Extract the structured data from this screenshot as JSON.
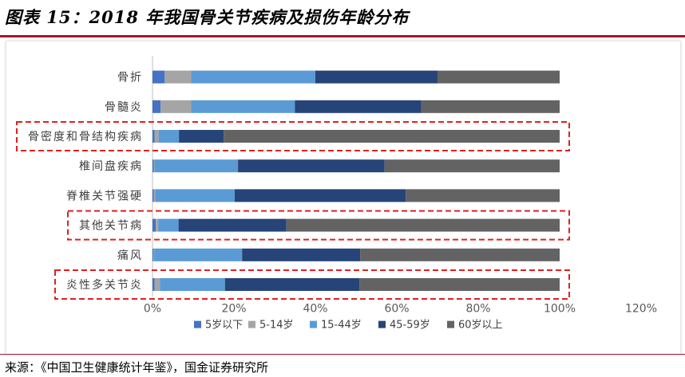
{
  "figure": {
    "title": "图表 15：2018 年我国骨关节疾病及损伤年龄分布",
    "source": "来源：《中国卫生健康统计年鉴》，国金证券研究所"
  },
  "chart_data": {
    "type": "bar",
    "orientation": "horizontal",
    "stacked": true,
    "title": "2018 年我国骨关节疾病及损伤年龄分布",
    "categories": [
      "骨折",
      "骨髓炎",
      "骨密度和骨结构疾病",
      "椎间盘疾病",
      "脊椎关节强硬",
      "其他关节病",
      "痛风",
      "炎性多关节炎"
    ],
    "series": [
      {
        "name": "5岁以下",
        "color": "#4472c4",
        "values": [
          3,
          2,
          0.5,
          0.3,
          0.3,
          0.8,
          0.2,
          0.5
        ]
      },
      {
        "name": "5-14岁",
        "color": "#a5a5a5",
        "values": [
          6.5,
          7.5,
          1,
          0.2,
          0.4,
          0.6,
          0.2,
          1.3
        ]
      },
      {
        "name": "15-44岁",
        "color": "#5b9bd5",
        "values": [
          30.5,
          25.5,
          5,
          20.5,
          19.5,
          5,
          21.6,
          16
        ]
      },
      {
        "name": "45-59岁",
        "color": "#264478",
        "values": [
          30,
          31,
          11,
          36,
          42,
          26.5,
          29,
          33
        ]
      },
      {
        "name": "60岁以上",
        "color": "#636363",
        "values": [
          30,
          34,
          82.5,
          43,
          37.8,
          67.1,
          49,
          49.2
        ]
      }
    ],
    "xlim": [
      0,
      120
    ],
    "xticks": [
      "0%",
      "20%",
      "40%",
      "60%",
      "80%",
      "100%",
      "120%"
    ],
    "xlabel": "",
    "ylabel": "",
    "legend_position": "bottom",
    "highlighted": [
      "骨密度和骨结构疾病",
      "其他关节病",
      "炎性多关节炎"
    ]
  }
}
